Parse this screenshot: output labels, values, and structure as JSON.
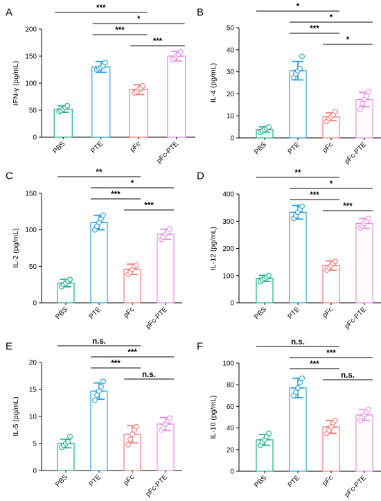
{
  "colors": {
    "PBS": "#1fae8f",
    "PTE": "#2a9fdc",
    "pFc": "#ef7d7a",
    "pFc-PTE": "#e58ee5"
  },
  "chart_data": [
    {
      "panel": "A",
      "type": "bar",
      "ylabel": "IFN-γ (pg/mL)",
      "categories": [
        "PBS",
        "PTE",
        "pFc",
        "pFc-PTE"
      ],
      "values": [
        52,
        130,
        88,
        150
      ],
      "errors": [
        6,
        10,
        9,
        9
      ],
      "points": [
        [
          47,
          49,
          52,
          55,
          58
        ],
        [
          125,
          127,
          129,
          132,
          138
        ],
        [
          82,
          84,
          88,
          91,
          95
        ],
        [
          143,
          146,
          150,
          153,
          158
        ]
      ],
      "ylim": [
        0,
        200
      ],
      "yticks": [
        0,
        50,
        100,
        150,
        200
      ],
      "ytick_labels": [
        "0",
        "50",
        "100",
        "150",
        "200"
      ],
      "comparisons": [
        {
          "from": 0,
          "to": 2,
          "label": "***"
        },
        {
          "from": 1,
          "to": 3,
          "label": "*"
        },
        {
          "from": 1,
          "to": 2,
          "label": "***"
        },
        {
          "from": 2,
          "to": 3,
          "label": "***"
        }
      ]
    },
    {
      "panel": "B",
      "type": "bar",
      "ylabel": "IL-4 (pg/mL)",
      "categories": [
        "PBS",
        "PTE",
        "pFc",
        "pFc-PTE"
      ],
      "values": [
        3.8,
        30.5,
        9.6,
        17.4
      ],
      "errors": [
        1.2,
        4.2,
        1.8,
        3.3
      ],
      "points": [
        [
          2.5,
          3.2,
          3.8,
          4.4,
          5.0
        ],
        [
          27.5,
          29.0,
          30.5,
          31.5,
          37.0
        ],
        [
          7.5,
          8.8,
          9.6,
          10.5,
          12.0
        ],
        [
          13.0,
          15.5,
          17.4,
          19.0,
          21.0
        ]
      ],
      "ylim": [
        0,
        50
      ],
      "yticks": [
        0,
        10,
        20,
        30,
        40,
        50
      ],
      "ytick_labels": [
        "0",
        "10",
        "20",
        "30",
        "40",
        "50"
      ],
      "comparisons": [
        {
          "from": 0,
          "to": 2,
          "label": "*"
        },
        {
          "from": 1,
          "to": 3,
          "label": "*"
        },
        {
          "from": 1,
          "to": 2,
          "label": "***"
        },
        {
          "from": 2,
          "to": 3,
          "label": "*"
        }
      ]
    },
    {
      "panel": "C",
      "type": "bar",
      "ylabel": "IL-2 (pg/mL)",
      "categories": [
        "PBS",
        "PTE",
        "pFc",
        "pFc-PTE"
      ],
      "values": [
        27,
        110,
        46,
        94
      ],
      "errors": [
        5,
        10,
        7,
        7
      ],
      "points": [
        [
          22,
          25,
          27,
          30,
          32
        ],
        [
          100,
          105,
          110,
          115,
          120
        ],
        [
          39,
          42,
          46,
          50,
          52
        ],
        [
          87,
          90,
          94,
          97,
          101
        ]
      ],
      "ylim": [
        0,
        150
      ],
      "yticks": [
        0,
        50,
        100,
        150
      ],
      "ytick_labels": [
        "0",
        "50",
        "100",
        "150"
      ],
      "comparisons": [
        {
          "from": 0,
          "to": 2,
          "label": "**"
        },
        {
          "from": 1,
          "to": 3,
          "label": "*"
        },
        {
          "from": 1,
          "to": 2,
          "label": "***"
        },
        {
          "from": 2,
          "to": 3,
          "label": "***"
        }
      ]
    },
    {
      "panel": "D",
      "type": "bar",
      "ylabel": "IL-12 (pg/mL)",
      "categories": [
        "PBS",
        "PTE",
        "pFc",
        "pFc-PTE"
      ],
      "values": [
        90,
        333,
        137,
        292
      ],
      "errors": [
        11,
        25,
        17,
        18
      ],
      "points": [
        [
          78,
          85,
          90,
          95,
          100
        ],
        [
          310,
          320,
          333,
          345,
          355
        ],
        [
          120,
          130,
          137,
          145,
          152
        ],
        [
          275,
          283,
          292,
          300,
          310
        ]
      ],
      "ylim": [
        0,
        400
      ],
      "yticks": [
        0,
        100,
        200,
        300,
        400
      ],
      "ytick_labels": [
        "0",
        "100",
        "200",
        "300",
        "400"
      ],
      "comparisons": [
        {
          "from": 0,
          "to": 2,
          "label": "**"
        },
        {
          "from": 1,
          "to": 3,
          "label": "*"
        },
        {
          "from": 1,
          "to": 2,
          "label": "***"
        },
        {
          "from": 2,
          "to": 3,
          "label": "***"
        }
      ]
    },
    {
      "panel": "E",
      "type": "bar",
      "ylabel": "IL-5 (pg/mL)",
      "categories": [
        "PBS",
        "PTE",
        "pFc",
        "pFc-PTE"
      ],
      "values": [
        5.0,
        14.7,
        6.7,
        8.6
      ],
      "errors": [
        0.8,
        1.5,
        1.6,
        1.2
      ],
      "points": [
        [
          4.3,
          4.7,
          5.0,
          5.3,
          6.3
        ],
        [
          13.0,
          14.0,
          14.7,
          15.5,
          16.5
        ],
        [
          4.8,
          5.8,
          6.7,
          7.5,
          8.1
        ],
        [
          7.5,
          8.0,
          8.6,
          9.2,
          9.7
        ]
      ],
      "ylim": [
        0,
        20
      ],
      "yticks": [
        0,
        5,
        10,
        15,
        20
      ],
      "ytick_labels": [
        "0",
        "5",
        "10",
        "15",
        "20"
      ],
      "comparisons": [
        {
          "from": 0,
          "to": 2,
          "label": "n.s."
        },
        {
          "from": 1,
          "to": 3,
          "label": "***"
        },
        {
          "from": 1,
          "to": 2,
          "label": "***"
        },
        {
          "from": 2,
          "to": 3,
          "label": "n.s."
        }
      ]
    },
    {
      "panel": "F",
      "type": "bar",
      "ylabel": "IL-10 (pg/mL)",
      "categories": [
        "PBS",
        "PTE",
        "pFc",
        "pFc-PTE"
      ],
      "values": [
        29,
        77,
        41,
        52
      ],
      "errors": [
        5,
        9,
        6,
        5
      ],
      "points": [
        [
          24,
          27,
          29,
          32,
          35
        ],
        [
          70,
          73,
          77,
          82,
          86
        ],
        [
          35,
          38,
          41,
          45,
          47
        ],
        [
          47,
          50,
          52,
          55,
          57
        ]
      ],
      "ylim": [
        0,
        100
      ],
      "yticks": [
        0,
        20,
        40,
        60,
        80,
        100
      ],
      "ytick_labels": [
        "0",
        "20",
        "40",
        "60",
        "80",
        "100"
      ],
      "comparisons": [
        {
          "from": 0,
          "to": 2,
          "label": "n.s."
        },
        {
          "from": 1,
          "to": 3,
          "label": "***"
        },
        {
          "from": 1,
          "to": 2,
          "label": "***"
        },
        {
          "from": 2,
          "to": 3,
          "label": "n.s."
        }
      ]
    }
  ]
}
